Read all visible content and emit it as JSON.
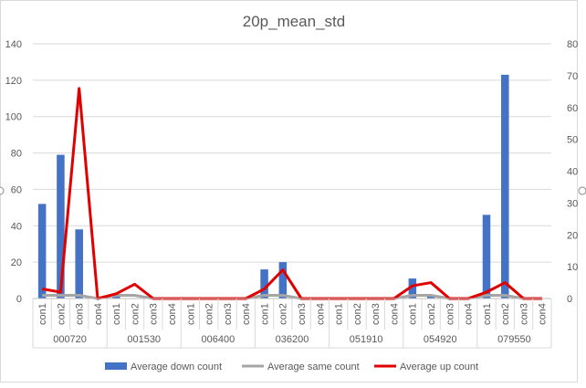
{
  "chart_data": {
    "type": "bar",
    "combo": "bar-line-dual-axis",
    "title": "20p_mean_std",
    "xlabel": "",
    "ylabel": "",
    "y2label": "",
    "groups": [
      "000720",
      "001530",
      "006400",
      "036200",
      "051910",
      "054920",
      "079550"
    ],
    "subcategories": [
      "con1",
      "con2",
      "con3",
      "con4"
    ],
    "ylim": [
      0,
      140
    ],
    "yticks": [
      0,
      20,
      40,
      60,
      80,
      100,
      120,
      140
    ],
    "y2lim": [
      0,
      80
    ],
    "y2ticks": [
      0,
      10,
      20,
      30,
      40,
      50,
      60,
      70,
      80
    ],
    "grid": true,
    "legend_position": "bottom",
    "series": [
      {
        "name": "Average down count",
        "kind": "bar",
        "axis": "primary",
        "color": "#4472C4",
        "values": [
          52,
          79,
          38,
          0,
          1,
          0,
          0,
          0,
          0,
          0,
          0,
          0,
          16,
          20,
          0,
          0,
          0,
          0,
          0,
          0,
          11,
          1,
          0,
          0,
          46,
          123,
          0,
          0
        ]
      },
      {
        "name": "Average same count",
        "kind": "line",
        "axis": "secondary",
        "color": "#A5A5A5",
        "values": [
          1,
          1,
          1,
          0,
          1,
          1,
          0,
          0,
          0,
          0,
          0,
          0,
          1,
          1,
          0,
          0,
          0,
          0,
          0,
          0,
          1,
          1,
          0,
          0,
          1,
          1,
          0,
          0
        ]
      },
      {
        "name": "Average up count",
        "kind": "line",
        "axis": "secondary",
        "color": "#E00000",
        "values": [
          3,
          2,
          66,
          0,
          1.5,
          4.5,
          0,
          0,
          0,
          0,
          0,
          0,
          3,
          9,
          0,
          0,
          0,
          0,
          0,
          0,
          4,
          5,
          0,
          0,
          2,
          5,
          0,
          0
        ]
      }
    ]
  }
}
